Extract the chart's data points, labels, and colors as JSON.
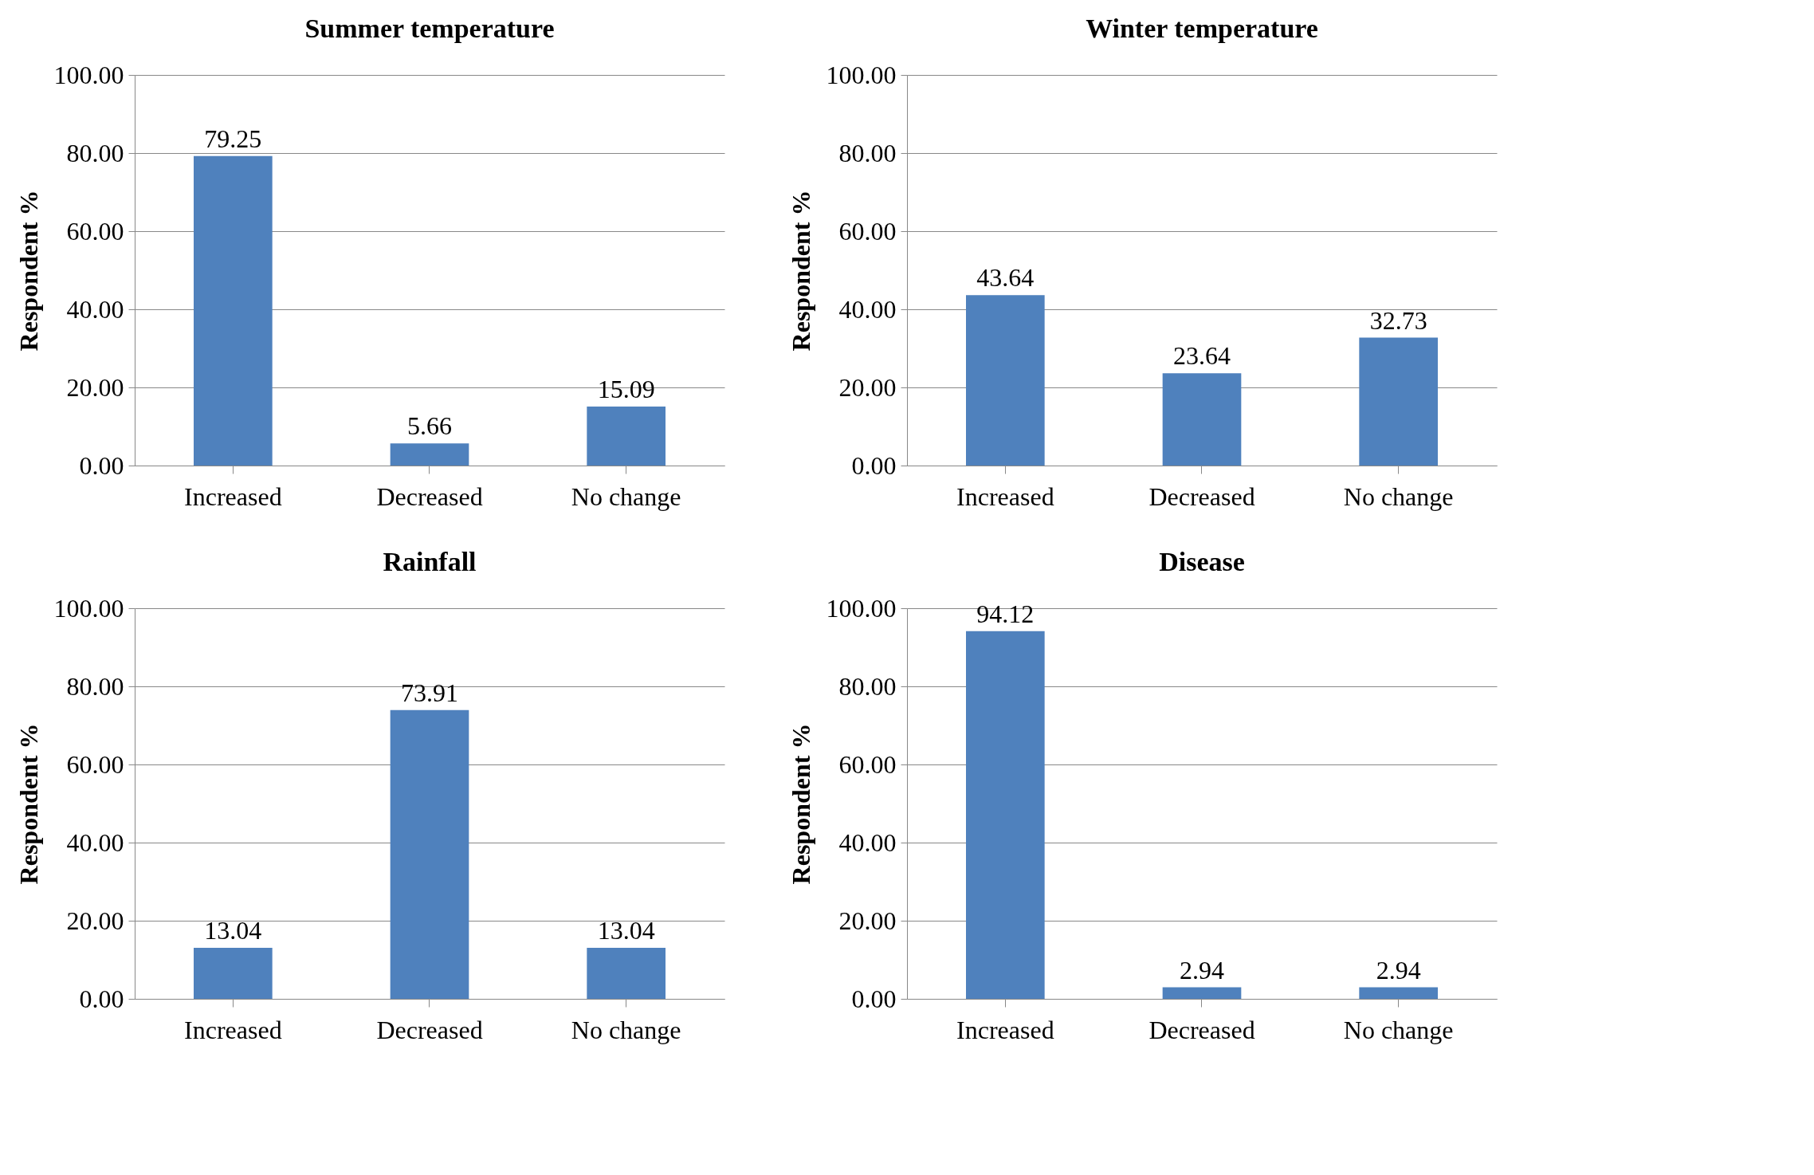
{
  "chart_data": [
    {
      "type": "bar",
      "title": "Summer temperature",
      "ylabel": "Respondent %",
      "categories": [
        "Increased",
        "Decreased",
        "No change"
      ],
      "values": [
        79.25,
        5.66,
        15.09
      ],
      "color": "#4f81bd",
      "ylim": [
        0,
        100
      ],
      "yticks": [
        {
          "value": 0,
          "label": "0.00"
        },
        {
          "value": 20,
          "label": "20.00"
        },
        {
          "value": 40,
          "label": "40.00"
        },
        {
          "value": 60,
          "label": "60.00"
        },
        {
          "value": 80,
          "label": "80.00"
        },
        {
          "value": 100,
          "label": "100.00"
        }
      ],
      "grid": "y",
      "data_labels": true
    },
    {
      "type": "bar",
      "title": "Winter temperature",
      "ylabel": "Respondent %",
      "categories": [
        "Increased",
        "Decreased",
        "No change"
      ],
      "values": [
        43.64,
        23.64,
        32.73
      ],
      "color": "#4f81bd",
      "ylim": [
        0,
        100
      ],
      "yticks": [
        {
          "value": 0,
          "label": "0.00"
        },
        {
          "value": 20,
          "label": "20.00"
        },
        {
          "value": 40,
          "label": "40.00"
        },
        {
          "value": 60,
          "label": "60.00"
        },
        {
          "value": 80,
          "label": "80.00"
        },
        {
          "value": 100,
          "label": "100.00"
        }
      ],
      "grid": "y",
      "data_labels": true
    },
    {
      "type": "bar",
      "title": "Rainfall",
      "ylabel": "Respondent %",
      "categories": [
        "Increased",
        "Decreased",
        "No change"
      ],
      "values": [
        13.04,
        73.91,
        13.04
      ],
      "color": "#4f81bd",
      "ylim": [
        0,
        100
      ],
      "yticks": [
        {
          "value": 0,
          "label": "0.00"
        },
        {
          "value": 20,
          "label": "20.00"
        },
        {
          "value": 40,
          "label": "40.00"
        },
        {
          "value": 60,
          "label": "60.00"
        },
        {
          "value": 80,
          "label": "80.00"
        },
        {
          "value": 100,
          "label": "100.00"
        }
      ],
      "grid": "y",
      "data_labels": true
    },
    {
      "type": "bar",
      "title": "Disease",
      "ylabel": "Respondent %",
      "categories": [
        "Increased",
        "Decreased",
        "No change"
      ],
      "values": [
        94.12,
        2.94,
        2.94
      ],
      "color": "#4f81bd",
      "ylim": [
        0,
        100
      ],
      "yticks": [
        {
          "value": 0,
          "label": "0.00"
        },
        {
          "value": 20,
          "label": "20.00"
        },
        {
          "value": 40,
          "label": "40.00"
        },
        {
          "value": 60,
          "label": "60.00"
        },
        {
          "value": 80,
          "label": "80.00"
        },
        {
          "value": 100,
          "label": "100.00"
        }
      ],
      "grid": "y",
      "data_labels": true
    }
  ]
}
